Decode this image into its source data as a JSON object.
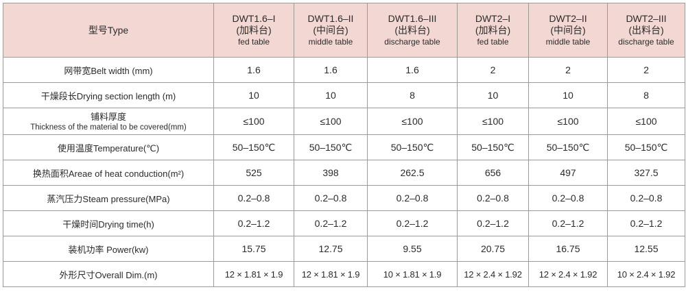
{
  "table": {
    "corner_label": "型号Type",
    "columns": [
      {
        "model": "DWT1.6–I",
        "zh": "(加料台)",
        "en": "fed table"
      },
      {
        "model": "DWT1.6–II",
        "zh": "(中间台)",
        "en": "middle table"
      },
      {
        "model": "DWT1.6–III",
        "zh": "(出料台)",
        "en": "discharge table"
      },
      {
        "model": "DWT2–I",
        "zh": "(加料台)",
        "en": "fed table"
      },
      {
        "model": "DWT2–II",
        "zh": "(中间台)",
        "en": "middle table"
      },
      {
        "model": "DWT2–III",
        "zh": "(出料台)",
        "en": "discharge table"
      }
    ],
    "rows": [
      {
        "label": "网带宽Belt width (mm)",
        "values": [
          "1.6",
          "1.6",
          "1.6",
          "2",
          "2",
          "2"
        ]
      },
      {
        "label": "干燥段长Drying section length (m)",
        "values": [
          "10",
          "10",
          "8",
          "10",
          "10",
          "8"
        ]
      },
      {
        "label": "铺料厚度",
        "label_en": "Thickness of the material to be covered(mm)",
        "values": [
          "≤100",
          "≤100",
          "≤100",
          "≤100",
          "≤100",
          "≤100"
        ]
      },
      {
        "label": "使用温度Temperature(℃)",
        "values": [
          "50–150℃",
          "50–150℃",
          "50–150℃",
          "50–150℃",
          "50–150℃",
          "50–150℃"
        ]
      },
      {
        "label": "换热面积Areae of heat conduction(m²)",
        "values": [
          "525",
          "398",
          "262.5",
          "656",
          "497",
          "327.5"
        ]
      },
      {
        "label": "蒸汽压力Steam pressure(MPa)",
        "values": [
          "0.2–0.8",
          "0.2–0.8",
          "0.2–0.8",
          "0.2–0.8",
          "0.2–0.8",
          "0.2–0.8"
        ]
      },
      {
        "label": "干燥时间Drying time(h)",
        "values": [
          "0.2–1.2",
          "0.2–1.2",
          "0.2–1.2",
          "0.2–1.2",
          "0.2–1.2",
          "0.2–1.2"
        ]
      },
      {
        "label": "装机功率 Power(kw)",
        "values": [
          "15.75",
          "12.75",
          "9.55",
          "20.75",
          "16.75",
          "12.55"
        ]
      },
      {
        "label": "外形尺寸Overall Dim.(m)",
        "values": [
          "12 × 1.81 × 1.9",
          "12 × 1.81 × 1.9",
          "10 × 1.81 × 1.9",
          "12 × 2.4 × 1.92",
          "12 × 2.4 × 1.92",
          "10 × 2.4 × 1.92"
        ]
      }
    ]
  }
}
